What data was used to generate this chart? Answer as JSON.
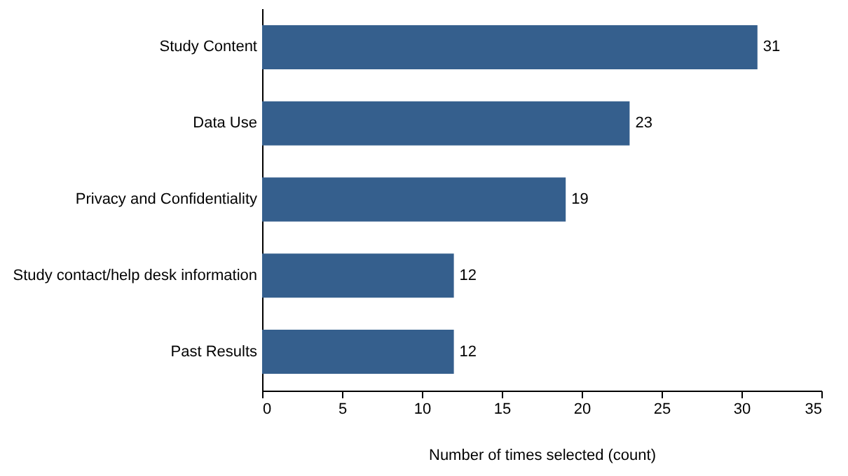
{
  "chart_data": {
    "type": "bar",
    "orientation": "horizontal",
    "categories": [
      "Study Content",
      "Data Use",
      "Privacy and Confidentiality",
      "Study contact/help desk information",
      "Past Results"
    ],
    "values": [
      31,
      23,
      19,
      12,
      12
    ],
    "color": "#355f8d",
    "xlabel": "Number of times selected (count)",
    "xlim": [
      0,
      35
    ],
    "xticks": [
      0,
      5,
      10,
      15,
      20,
      25,
      30,
      35
    ],
    "data_labels": true,
    "grid": false
  }
}
